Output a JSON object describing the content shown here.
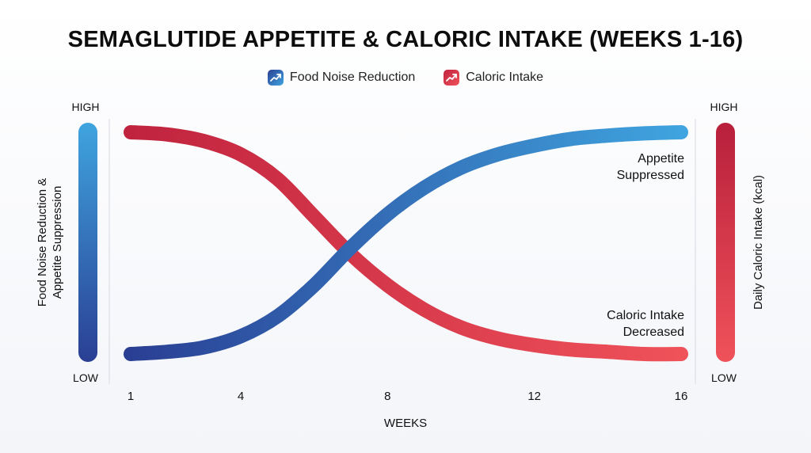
{
  "chart_data": {
    "type": "line",
    "title": "SEMAGLUTIDE APPETITE & CALORIC INTAKE (WEEKS 1-16)",
    "xlabel": "WEEKS",
    "ylabel_left": "Food Noise Reduction & Appetite Suppression",
    "ylabel_left_lines": [
      "Food Noise Reduction &",
      "Appetite Suppression"
    ],
    "ylabel_right": "Daily Caloric Intake (kcal)",
    "x_ticks": [
      1,
      4,
      8,
      12,
      16
    ],
    "xlim": [
      1,
      16
    ],
    "y_scale_labels": {
      "high": "HIGH",
      "low": "LOW"
    },
    "ylim": [
      0,
      1
    ],
    "legend_position": "top-center",
    "series": [
      {
        "name": "Food Noise Reduction",
        "color_start": "#2a3f93",
        "color_end": "#3fa4df",
        "x": [
          1,
          2,
          3,
          4,
          5,
          6,
          7,
          8,
          9,
          10,
          11,
          12,
          13,
          14,
          15,
          16
        ],
        "values": [
          0.0,
          0.01,
          0.03,
          0.08,
          0.17,
          0.31,
          0.48,
          0.63,
          0.75,
          0.84,
          0.9,
          0.94,
          0.97,
          0.985,
          0.995,
          1.0
        ]
      },
      {
        "name": "Caloric Intake",
        "color_start": "#c0233e",
        "color_end": "#f0525a",
        "x": [
          1,
          2,
          3,
          4,
          5,
          6,
          7,
          8,
          9,
          10,
          11,
          12,
          13,
          14,
          15,
          16
        ],
        "values": [
          1.0,
          0.99,
          0.96,
          0.9,
          0.79,
          0.62,
          0.45,
          0.31,
          0.2,
          0.12,
          0.07,
          0.04,
          0.02,
          0.01,
          0.0,
          0.0
        ]
      }
    ],
    "annotations": [
      {
        "lines": [
          "Appetite",
          "Suppressed"
        ],
        "series": "Food Noise Reduction"
      },
      {
        "lines": [
          "Caloric Intake",
          "Decreased"
        ],
        "series": "Caloric Intake"
      }
    ]
  }
}
